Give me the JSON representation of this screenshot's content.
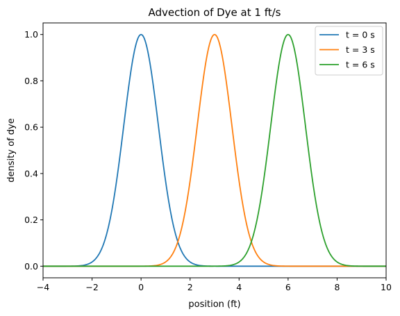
{
  "chart_data": {
    "type": "line",
    "title": "Advection of Dye at 1 ft/s",
    "xlabel": "position (ft)",
    "ylabel": "density of dye",
    "xlim": [
      -4,
      10
    ],
    "ylim": [
      -0.05,
      1.05
    ],
    "xticks": [
      -4,
      -2,
      0,
      2,
      4,
      6,
      8,
      10
    ],
    "xtick_labels": [
      "−4",
      "−2",
      "0",
      "2",
      "4",
      "6",
      "8",
      "10"
    ],
    "yticks": [
      0.0,
      0.2,
      0.4,
      0.6,
      0.8,
      1.0
    ],
    "ytick_labels": [
      "0.0",
      "0.2",
      "0.4",
      "0.6",
      "0.8",
      "1.0"
    ],
    "grid": false,
    "legend": "top-right",
    "series": [
      {
        "name": "t = 0 s",
        "color": "#1f77b4",
        "x": [
          -4.0,
          -3.5,
          -3.0,
          -2.5,
          -2.0,
          -1.75,
          -1.5,
          -1.25,
          -1.0,
          -0.75,
          -0.5,
          -0.25,
          0.0,
          0.25,
          0.5,
          0.75,
          1.0,
          1.25,
          1.5,
          1.75,
          2.0,
          2.5,
          3.0,
          3.5,
          4.0,
          5.0,
          6.0,
          7.0,
          8.0,
          9.0,
          10.0
        ],
        "y": [
          0.0,
          0.0,
          0.0,
          0.002,
          0.018,
          0.047,
          0.105,
          0.21,
          0.368,
          0.57,
          0.779,
          0.939,
          1.0,
          0.939,
          0.779,
          0.57,
          0.368,
          0.21,
          0.105,
          0.047,
          0.018,
          0.002,
          0.0,
          0.0,
          0.0,
          0.0,
          0.0,
          0.0,
          0.0,
          0.0,
          0.0
        ]
      },
      {
        "name": "t = 3 s",
        "color": "#ff7f0e",
        "x": [
          -4.0,
          -2.0,
          -1.0,
          0.0,
          0.5,
          1.0,
          1.25,
          1.5,
          1.75,
          2.0,
          2.25,
          2.5,
          2.75,
          3.0,
          3.25,
          3.5,
          3.75,
          4.0,
          4.25,
          4.5,
          4.75,
          5.0,
          5.5,
          6.0,
          7.0,
          8.0,
          9.0,
          10.0
        ],
        "y": [
          0.0,
          0.0,
          0.0,
          0.0,
          0.002,
          0.018,
          0.047,
          0.105,
          0.21,
          0.368,
          0.57,
          0.779,
          0.939,
          1.0,
          0.939,
          0.779,
          0.57,
          0.368,
          0.21,
          0.105,
          0.047,
          0.018,
          0.002,
          0.0,
          0.0,
          0.0,
          0.0,
          0.0
        ]
      },
      {
        "name": "t = 6 s",
        "color": "#2ca02c",
        "x": [
          -4.0,
          -2.0,
          0.0,
          2.0,
          3.0,
          3.5,
          4.0,
          4.25,
          4.5,
          4.75,
          5.0,
          5.25,
          5.5,
          5.75,
          6.0,
          6.25,
          6.5,
          6.75,
          7.0,
          7.25,
          7.5,
          7.75,
          8.0,
          8.5,
          9.0,
          10.0
        ],
        "y": [
          0.0,
          0.0,
          0.0,
          0.0,
          0.0,
          0.002,
          0.018,
          0.047,
          0.105,
          0.21,
          0.368,
          0.57,
          0.779,
          0.939,
          1.0,
          0.939,
          0.779,
          0.57,
          0.368,
          0.21,
          0.105,
          0.047,
          0.018,
          0.002,
          0.0,
          0.0
        ]
      }
    ]
  }
}
